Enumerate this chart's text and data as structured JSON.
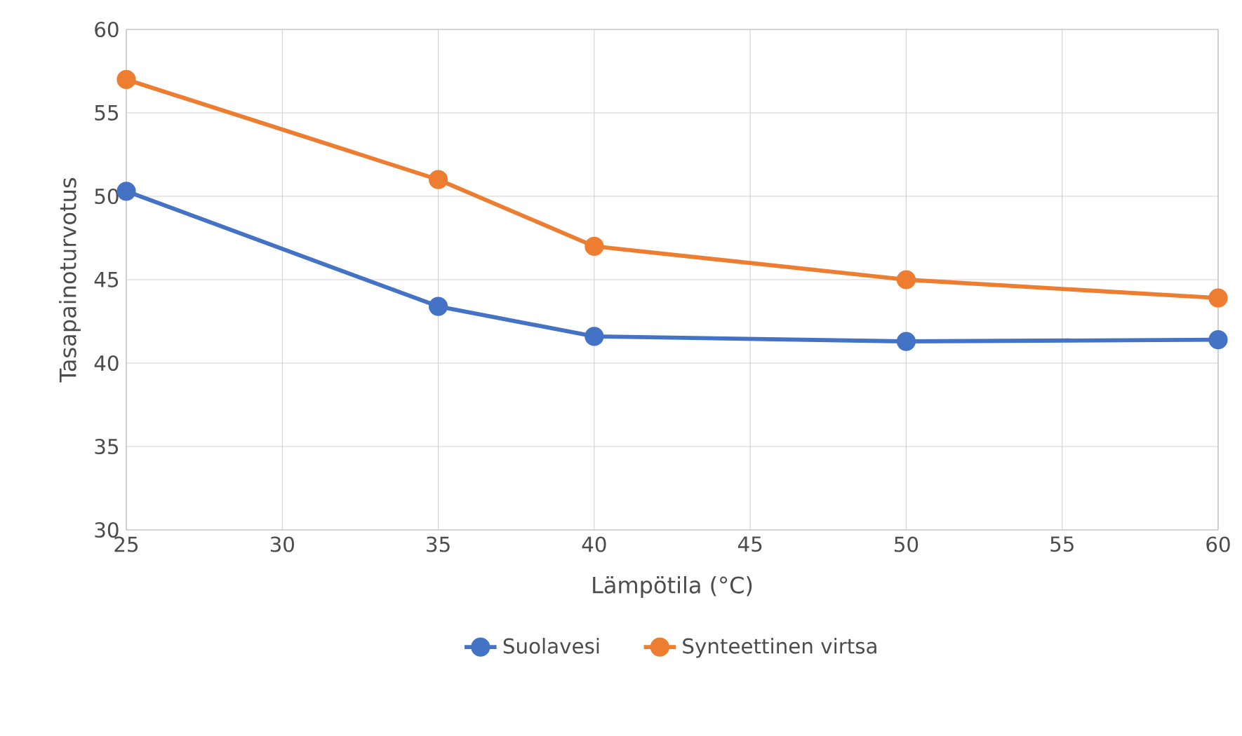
{
  "chart_data": {
    "type": "line",
    "xlabel": "Lämpötila (°C)",
    "ylabel": "Tasapainoturvotus",
    "x": [
      25,
      35,
      40,
      50,
      60
    ],
    "series": [
      {
        "name": "Suolavesi",
        "color": "#4472c4",
        "values": [
          50.3,
          43.4,
          41.6,
          41.3,
          41.4
        ]
      },
      {
        "name": "Synteettinen virtsa",
        "color": "#ed7d31",
        "values": [
          57,
          51,
          47,
          45,
          43.9
        ]
      }
    ],
    "xlim": [
      25,
      60
    ],
    "ylim": [
      30,
      60
    ],
    "xticks": [
      25,
      30,
      35,
      40,
      45,
      50,
      55,
      60
    ],
    "yticks": [
      30,
      35,
      40,
      45,
      50,
      55,
      60
    ],
    "grid": true,
    "legend": "bottom",
    "marker": "circle",
    "line_style": "solid"
  }
}
